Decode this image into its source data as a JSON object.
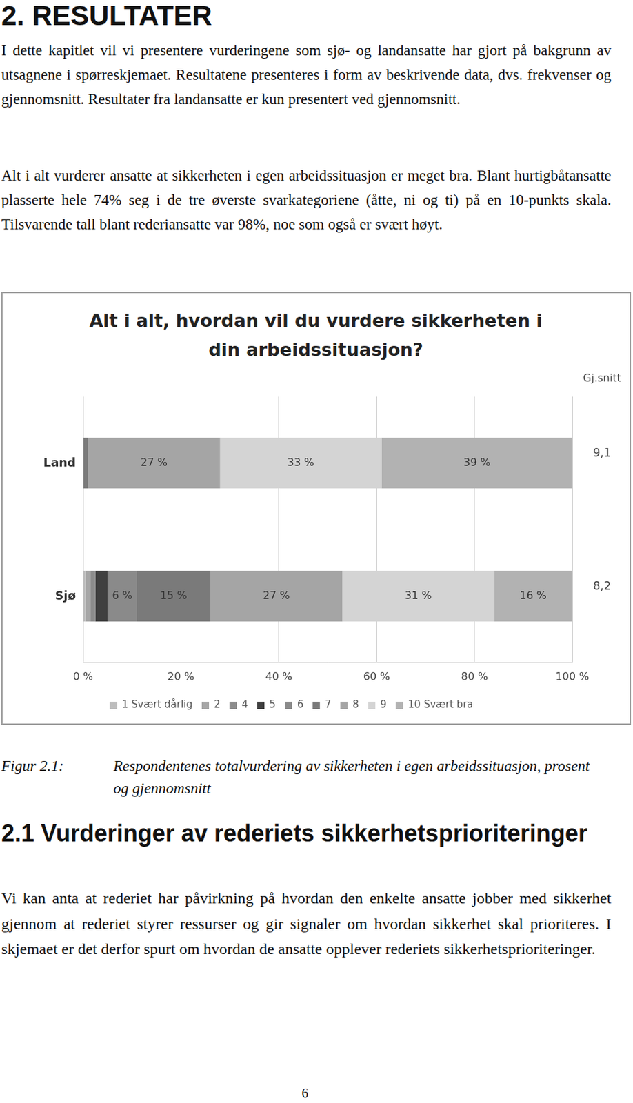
{
  "heading": "2. RESULTATER",
  "intro_paragraphs": [
    "I dette kapitlet vil vi presentere vurderingene som sjø- og landansatte har gjort på bakgrunn av utsagnene i spørreskjemaet. Resultatene presenteres i form av beskrivende data, dvs. frekvenser og gjennomsnitt. Resultater fra landansatte er kun presentert ved gjennomsnitt.",
    "Alt i alt vurderer ansatte at sikkerheten i egen arbeidssituasjon er meget bra. Blant hurtigbåtansatte plasserte hele 74% seg i de tre øverste svarkategoriene (åtte, ni og ti) på en 10-punkts skala. Tilsvarende tall blant rederiansatte var 98%, noe som også er svært høyt."
  ],
  "chart_data": {
    "type": "bar",
    "title": "Alt i alt, hvordan vil du vurdere sikkerheten i din arbeidssituasjon?",
    "orientation": "horizontal",
    "stacked": true,
    "categories": [
      "Land",
      "Sjø"
    ],
    "series": [
      {
        "name": "1 Svært dårlig",
        "color": "#bdbdbd",
        "values": [
          0,
          0.5
        ],
        "value_labels": [
          null,
          null
        ]
      },
      {
        "name": "2",
        "color": "#a6a6a6",
        "values": [
          0,
          1
        ],
        "value_labels": [
          null,
          null
        ]
      },
      {
        "name": "4",
        "color": "#8c8c8c",
        "values": [
          0,
          1
        ],
        "value_labels": [
          null,
          null
        ]
      },
      {
        "name": "5",
        "color": "#404040",
        "values": [
          0,
          2.5
        ],
        "value_labels": [
          null,
          null
        ]
      },
      {
        "name": "6",
        "color": "#8a8a8a",
        "values": [
          0,
          6
        ],
        "value_labels": [
          null,
          "6 %"
        ]
      },
      {
        "name": "7",
        "color": "#7a7a7a",
        "values": [
          1,
          15
        ],
        "value_labels": [
          null,
          "15 %"
        ]
      },
      {
        "name": "8",
        "color": "#a5a5a5",
        "values": [
          27,
          27
        ],
        "value_labels": [
          "27 %",
          "27 %"
        ]
      },
      {
        "name": "9",
        "color": "#d4d4d4",
        "values": [
          33,
          31
        ],
        "value_labels": [
          "33 %",
          "31 %"
        ]
      },
      {
        "name": "10 Svært bra",
        "color": "#b2b2b2",
        "values": [
          39,
          16
        ],
        "value_labels": [
          "39 %",
          "16 %"
        ]
      }
    ],
    "xlim": [
      0,
      100
    ],
    "xticks": [
      {
        "value": 0,
        "label": "0 %"
      },
      {
        "value": 20,
        "label": "20 %"
      },
      {
        "value": 40,
        "label": "40 %"
      },
      {
        "value": 60,
        "label": "60 %"
      },
      {
        "value": 80,
        "label": "80 %"
      },
      {
        "value": 100,
        "label": "100 %"
      }
    ],
    "grid": true,
    "legend": "bottom",
    "data_labels": true,
    "averages": {
      "label": "Gj.snitt",
      "values": [
        {
          "value": 9.1,
          "label": "9,1"
        },
        {
          "value": 8.2,
          "label": "8,2"
        }
      ]
    }
  },
  "caption": {
    "label": "Figur 2.1:",
    "text": "Respondentenes totalvurdering av sikkerheten i egen arbeidssituasjon, prosent og gjennomsnitt"
  },
  "section": {
    "number": "2.1",
    "title": "Vurderinger av rederiets sikkerhetsprioriteringer",
    "paragraph": "Vi kan anta at rederiet har påvirkning på hvordan den enkelte ansatte jobber med sikkerhet gjennom at rederiet styrer ressurser og gir signaler om hvordan sikkerhet skal prioriteres. I skjemaet er det derfor spurt om hvordan de ansatte opplever rederiets sikkerhetsprioriteringer."
  },
  "page_number": 6
}
